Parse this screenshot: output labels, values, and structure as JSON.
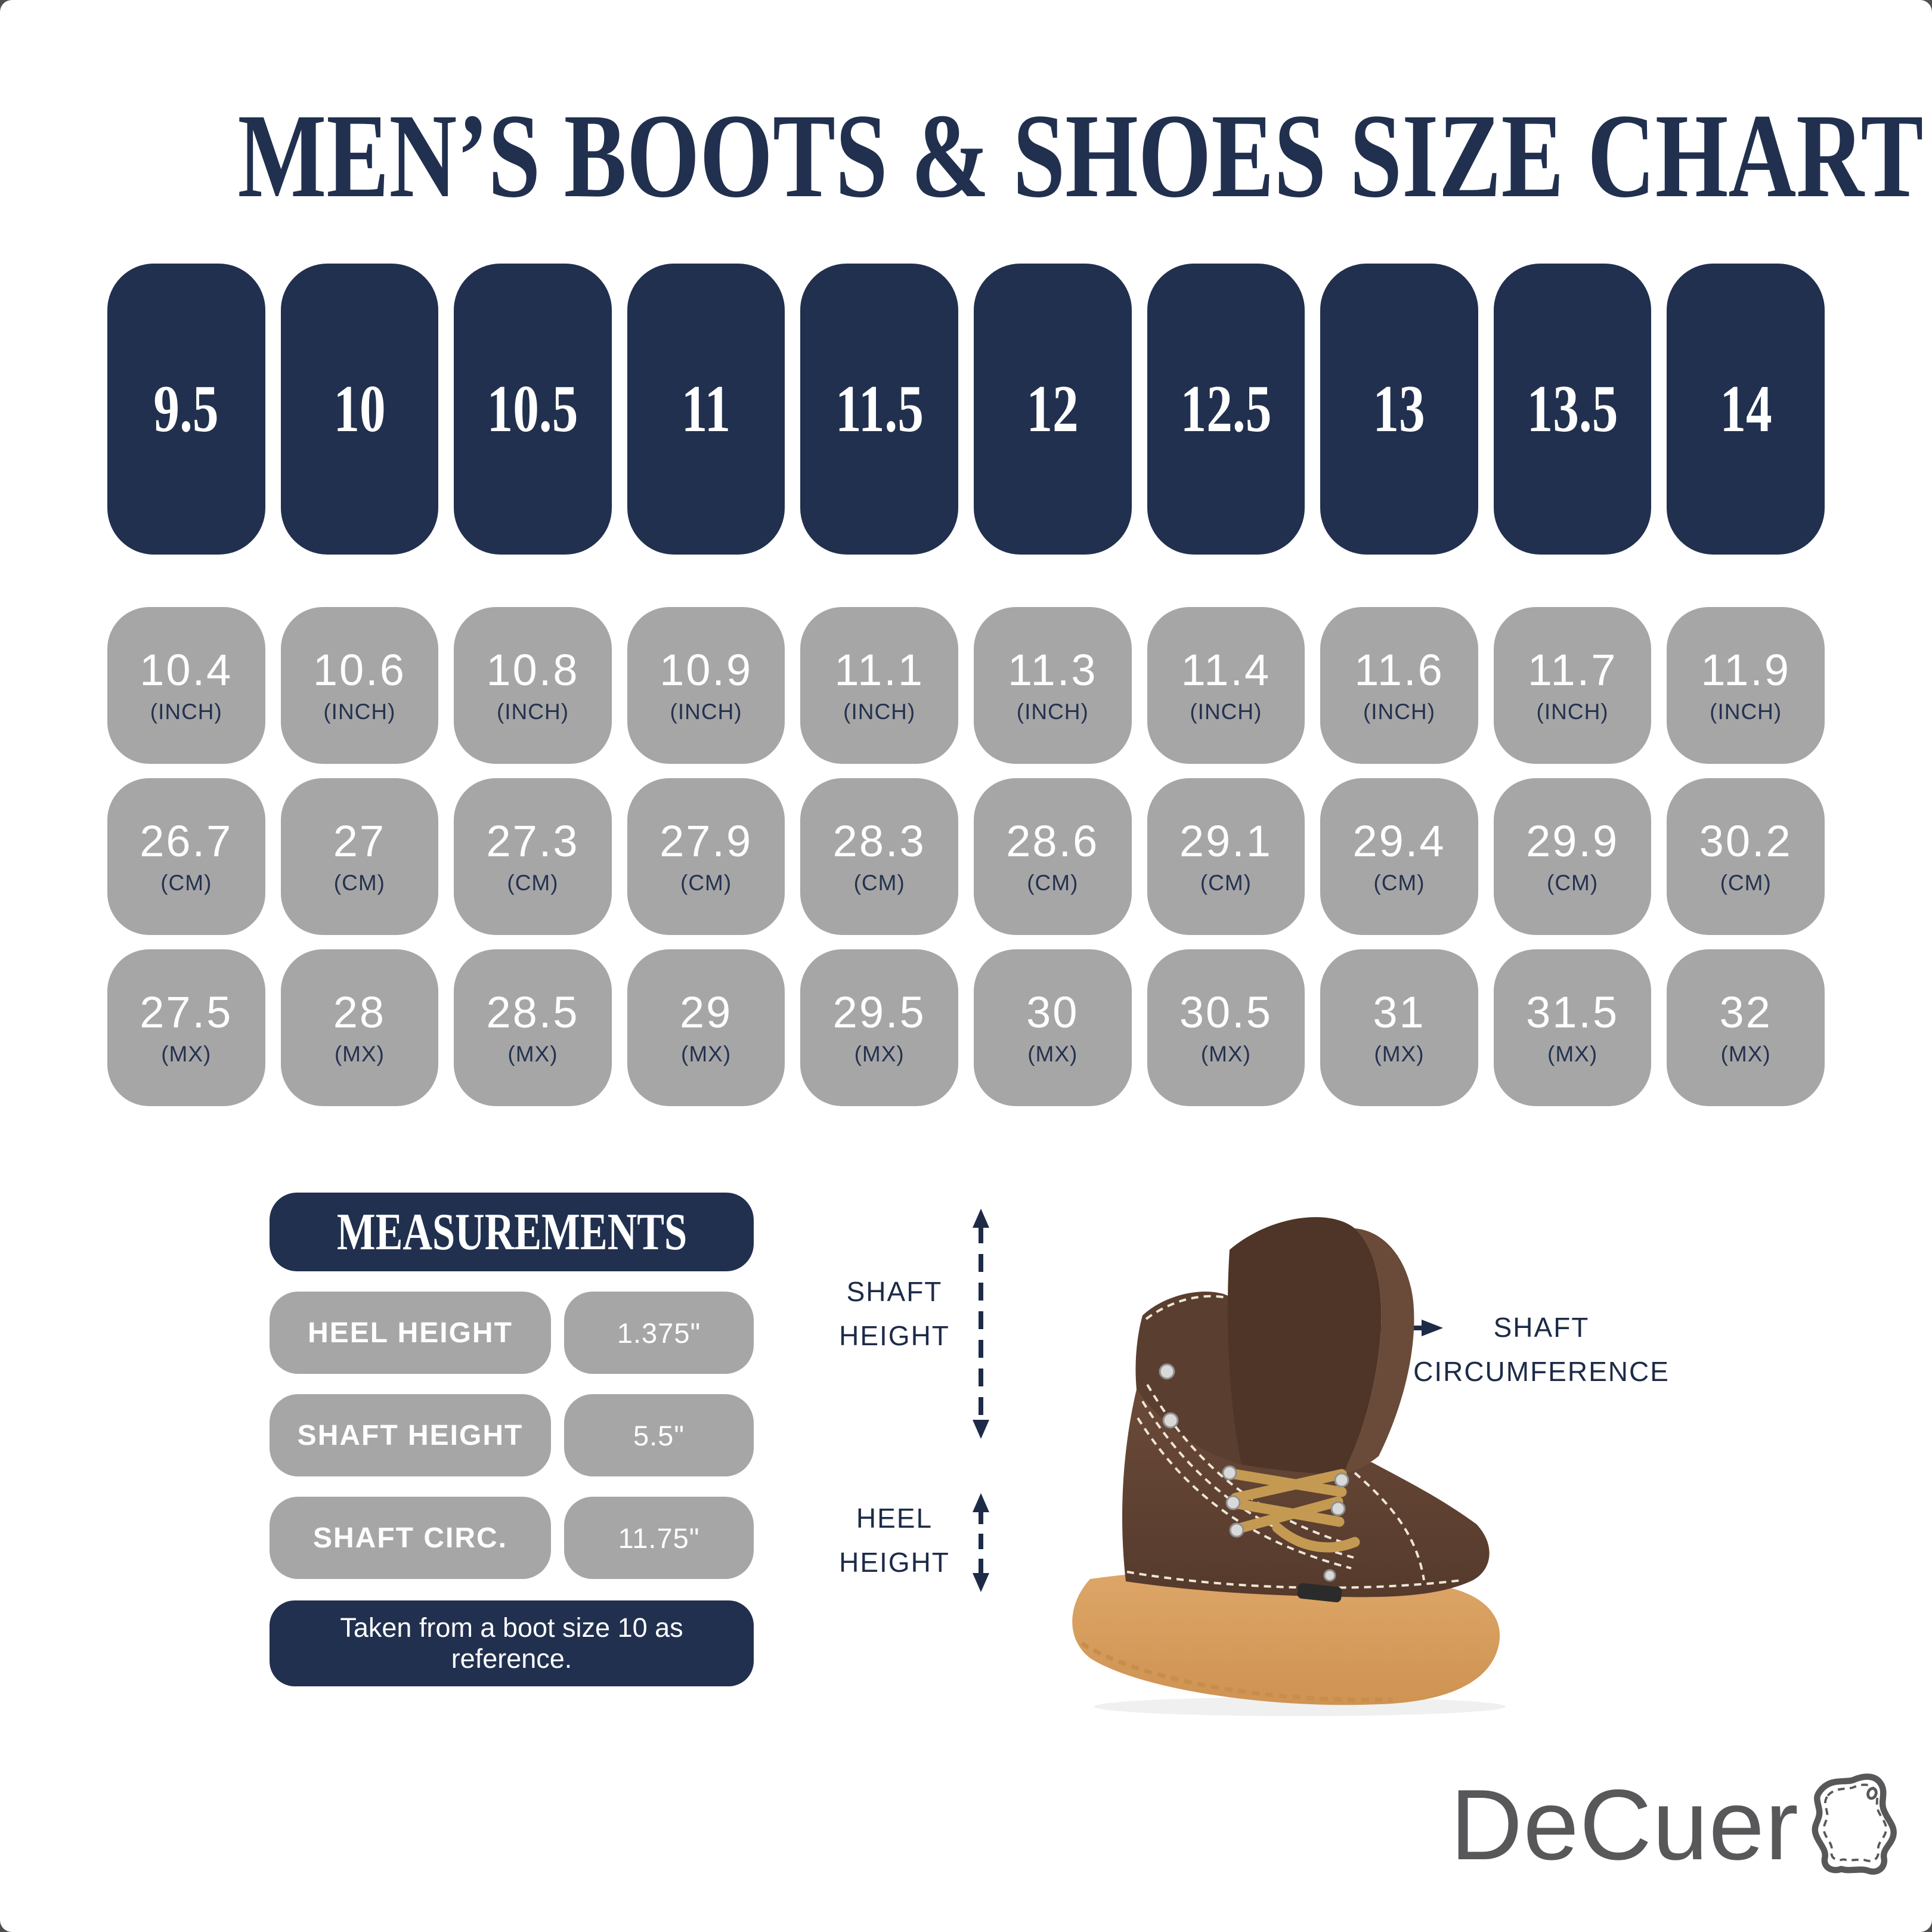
{
  "title": "MEN’S BOOTS & SHOES SIZE CHART",
  "chart_data": {
    "type": "table",
    "title": "MEN’S BOOTS & SHOES SIZE CHART",
    "categories": [
      "9.5",
      "10",
      "10.5",
      "11",
      "11.5",
      "12",
      "12.5",
      "13",
      "13.5",
      "14"
    ],
    "series": [
      {
        "name": "INCH",
        "values": [
          "10.4",
          "10.6",
          "10.8",
          "10.9",
          "11.1",
          "11.3",
          "11.4",
          "11.6",
          "11.7",
          "11.9"
        ]
      },
      {
        "name": "CM",
        "values": [
          "26.7",
          "27",
          "27.3",
          "27.9",
          "28.3",
          "28.6",
          "29.1",
          "29.4",
          "29.9",
          "30.2"
        ]
      },
      {
        "name": "MX",
        "values": [
          "27.5",
          "28",
          "28.5",
          "29",
          "29.5",
          "30",
          "30.5",
          "31",
          "31.5",
          "32"
        ]
      }
    ],
    "legend_position": "none",
    "grid": false
  },
  "units": [
    "(INCH)",
    "(CM)",
    "(MX)"
  ],
  "measurements": {
    "header": "MEASUREMENTS",
    "rows": [
      {
        "label": "HEEL HEIGHT",
        "value": "1.375\""
      },
      {
        "label": "SHAFT HEIGHT",
        "value": "5.5\""
      },
      {
        "label": "SHAFT CIRC.",
        "value": "11.75\""
      }
    ],
    "note": "Taken from a boot size 10 as reference."
  },
  "diagram": {
    "shaft_height": "SHAFT HEIGHT",
    "heel_height": "HEEL HEIGHT",
    "shaft_circumference": "SHAFT CIRCUMFERENCE"
  },
  "brand": {
    "wordmark": "DeCuer",
    "icon": "leather-hide-icon"
  },
  "colors": {
    "navy": "#21304e",
    "gray": "#a6a6a6",
    "annotation_navy": "#1d2b47",
    "logo_gray": "#58585a",
    "boot_brown": "#5d4032",
    "boot_suede": "#4e3527",
    "sole_tan": "#d9a05f",
    "lace_gold": "#c49a52"
  }
}
